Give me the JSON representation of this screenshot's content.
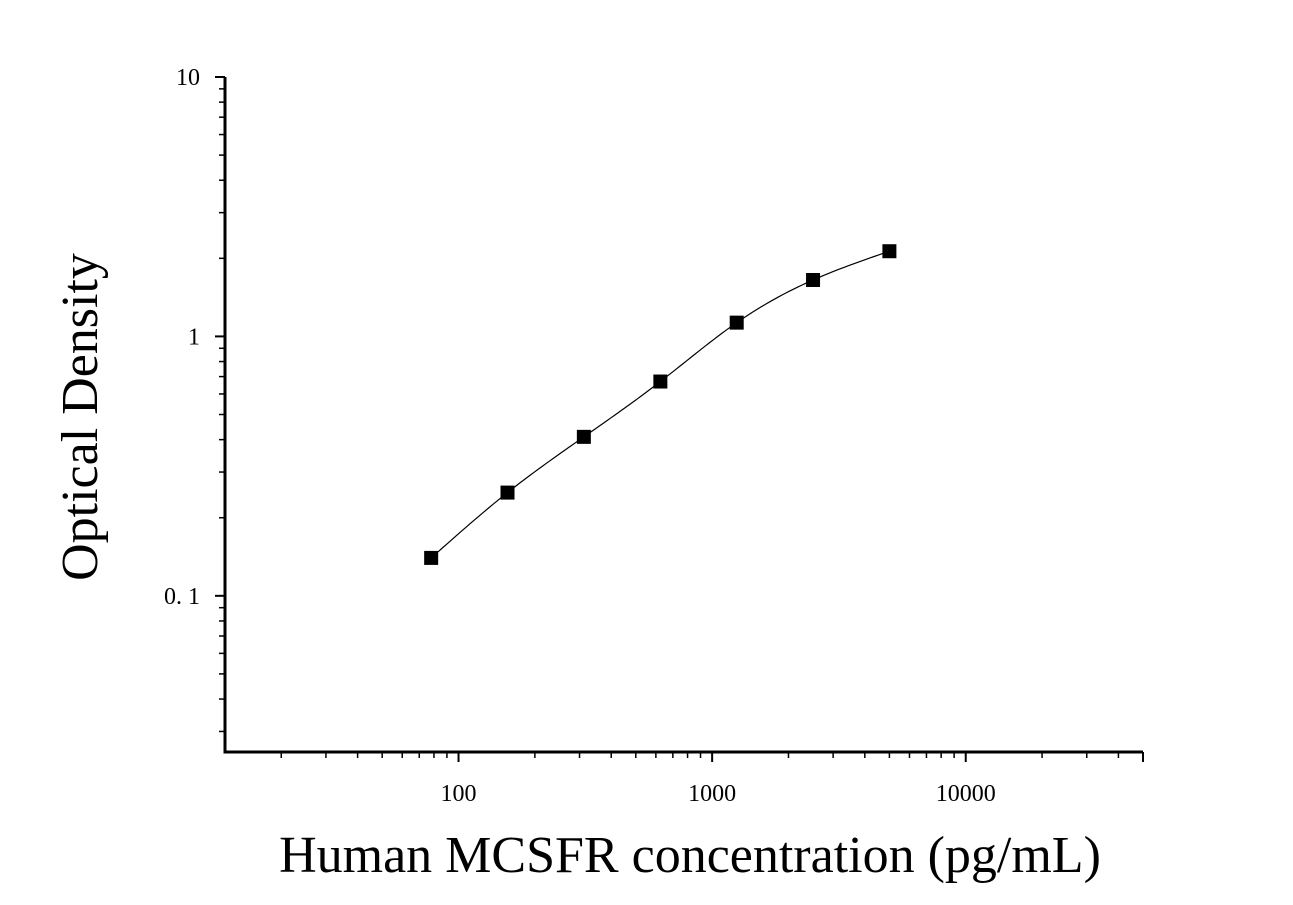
{
  "chart_data": {
    "type": "scatter",
    "xlabel": "Human MCSFR concentration (pg/mL)",
    "ylabel": "Optical Density",
    "x_scale": "log",
    "y_scale": "log",
    "xlim": [
      12,
      50000
    ],
    "ylim": [
      0.025,
      10
    ],
    "x_ticks": [
      {
        "value": 100,
        "label": "100"
      },
      {
        "value": 1000,
        "label": "1000"
      },
      {
        "value": 10000,
        "label": "10000"
      }
    ],
    "y_ticks": [
      {
        "value": 0.1,
        "label": "0. 1"
      },
      {
        "value": 1,
        "label": "1"
      },
      {
        "value": 10,
        "label": "10"
      }
    ],
    "series": [
      {
        "marker": "square",
        "fit_line": true,
        "color": "#000000",
        "x": [
          78,
          156,
          312,
          625,
          1250,
          2500,
          5000
        ],
        "y": [
          0.14,
          0.25,
          0.41,
          0.67,
          1.13,
          1.65,
          2.13
        ]
      }
    ],
    "grid": false
  }
}
